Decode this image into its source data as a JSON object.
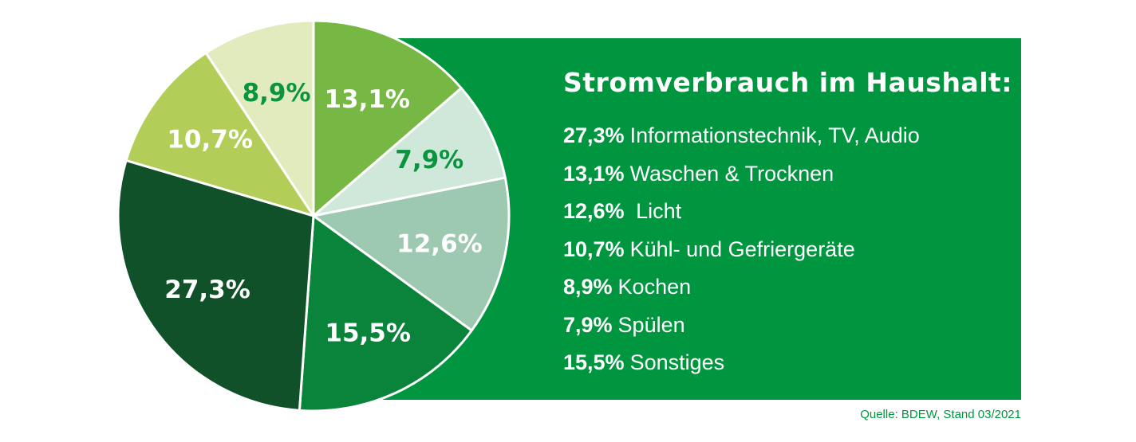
{
  "chart_data": {
    "type": "pie",
    "title": "Stromverbrauch im Haushalt:",
    "slices": [
      {
        "label": "13,1%",
        "value": 13.1,
        "color": "#76b843",
        "label_color": "#ffffff"
      },
      {
        "label": "7,9%",
        "value": 7.9,
        "color": "#d0e8da",
        "label_color": "#0a9440"
      },
      {
        "label": "12,6%",
        "value": 12.6,
        "color": "#9dc9b0",
        "label_color": "#ffffff"
      },
      {
        "label": "15,5%",
        "value": 15.5,
        "color": "#0a833b",
        "label_color": "#ffffff"
      },
      {
        "label": "27,3%",
        "value": 27.3,
        "color": "#10512a",
        "label_color": "#ffffff"
      },
      {
        "label": "10,7%",
        "value": 10.7,
        "color": "#b2ce59",
        "label_color": "#ffffff"
      },
      {
        "label": "8,9%",
        "value": 8.9,
        "color": "#e1ebbd",
        "label_color": "#0a9440"
      }
    ],
    "start": "12 o'clock, clockwise"
  },
  "legend": [
    {
      "value": "27,3%",
      "text": "Informationstechnik, TV, Audio"
    },
    {
      "value": "13,1%",
      "text": "Waschen & Trocknen"
    },
    {
      "value": "12,6%",
      "text": " Licht"
    },
    {
      "value": "10,7%",
      "text": "Kühl- und Gefriergeräte"
    },
    {
      "value": "8,9%",
      "text": "Kochen"
    },
    {
      "value": "7,9%",
      "text": "Spülen"
    },
    {
      "value": "15,5%",
      "text": "Sonstiges"
    }
  ],
  "source": "Quelle: BDEW, Stand 03/2021",
  "colors": {
    "panel": "#009640",
    "text": "#ffffff"
  }
}
